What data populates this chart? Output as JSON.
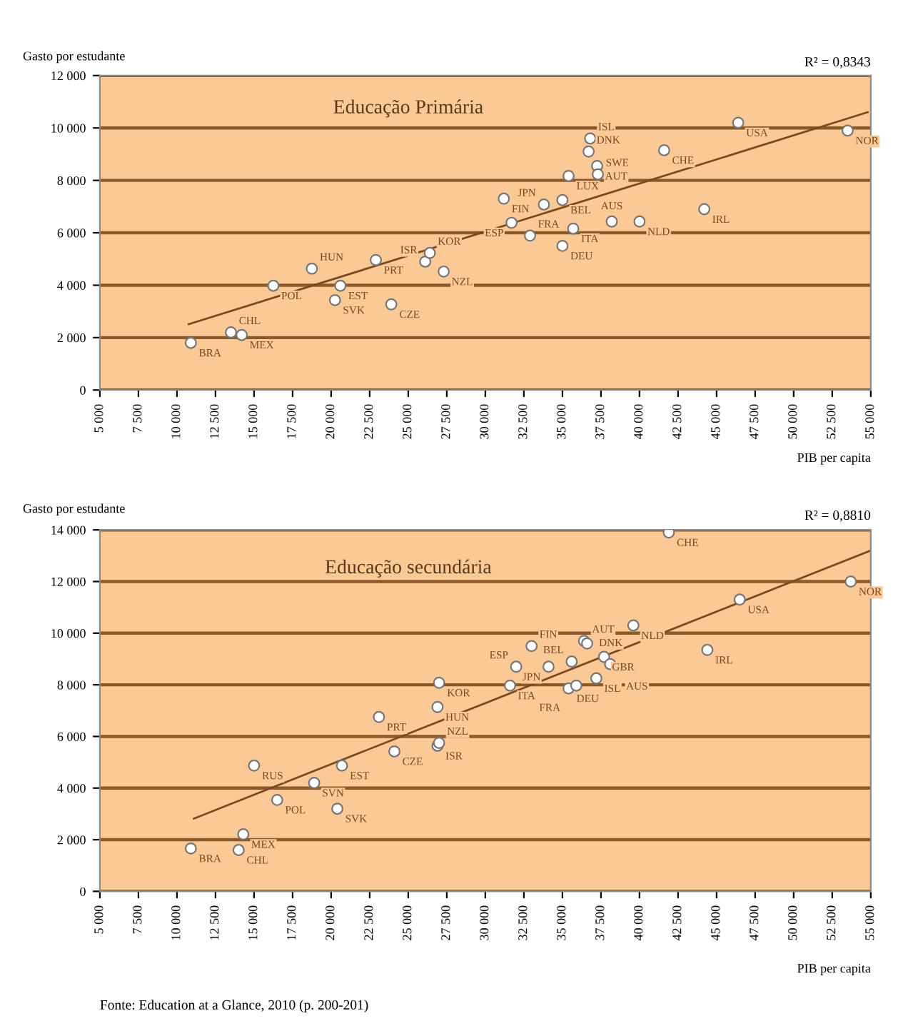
{
  "chart_data": [
    {
      "type": "scatter",
      "title": "Educação Primária",
      "xlabel": "PIB per capita",
      "ylabel": "Gasto por estudante",
      "annotations": [
        "R² = 0,8343"
      ],
      "grid": "y",
      "xlim": [
        5000,
        55000
      ],
      "ylim": [
        0,
        12000
      ],
      "xticks": [
        {
          "value": 5000,
          "label": "5 000"
        },
        {
          "value": 7500,
          "label": "7 500"
        },
        {
          "value": 10000,
          "label": "10 000"
        },
        {
          "value": 12500,
          "label": "12 500"
        },
        {
          "value": 15000,
          "label": "15 000"
        },
        {
          "value": 17500,
          "label": "17 500"
        },
        {
          "value": 20000,
          "label": "20 000"
        },
        {
          "value": 22500,
          "label": "22 500"
        },
        {
          "value": 25000,
          "label": "25 000"
        },
        {
          "value": 27500,
          "label": "27 500"
        },
        {
          "value": 30000,
          "label": "30 000"
        },
        {
          "value": 32500,
          "label": "32 500"
        },
        {
          "value": 35000,
          "label": "35 000"
        },
        {
          "value": 37500,
          "label": "37 500"
        },
        {
          "value": 40000,
          "label": "40 000"
        },
        {
          "value": 42500,
          "label": "42 500"
        },
        {
          "value": 45000,
          "label": "45 000"
        },
        {
          "value": 47500,
          "label": "47 500"
        },
        {
          "value": 50000,
          "label": "50 000"
        },
        {
          "value": 52500,
          "label": "52 500"
        },
        {
          "value": 55000,
          "label": "55 000"
        }
      ],
      "yticks": [
        0,
        {
          "value": 2000,
          "label": "2 000"
        },
        {
          "value": 4000,
          "label": "4 000"
        },
        {
          "value": 6000,
          "label": "6 000"
        },
        {
          "value": 8000,
          "label": "8 000"
        },
        {
          "value": 10000,
          "label": "10 000"
        },
        {
          "value": 12000,
          "label": "12 000"
        }
      ],
      "series": [
        {
          "color": "#ffffff",
          "marker": "circle",
          "x": [
            10900,
            13500,
            14200,
            16250,
            18750,
            20250,
            20600,
            23900,
            22900,
            26100,
            26400,
            27300,
            31200,
            31700,
            32900,
            33800,
            35000,
            35000,
            35400,
            35700,
            36700,
            36800,
            37250,
            37300,
            38200,
            40000,
            41600,
            44200,
            46400,
            53500
          ],
          "values": [
            1800,
            2200,
            2100,
            3980,
            4630,
            3430,
            3980,
            3270,
            4960,
            4900,
            5230,
            4520,
            7300,
            6380,
            5890,
            7080,
            7250,
            5500,
            8170,
            6160,
            9100,
            9600,
            8550,
            8230,
            6430,
            6430,
            9150,
            6900,
            10200,
            9900
          ],
          "value_labels": [
            "BRA",
            "CHL",
            "MEX",
            "POL",
            "HUN",
            "SVK",
            "EST",
            "CZE",
            "PRT",
            "ISR",
            "KOR",
            "NZL",
            "FIN",
            "ESP",
            "FRA",
            "JPN",
            "BEL",
            "DEU",
            "LUX",
            "ITA",
            "DNK",
            "ISL",
            "AUT",
            "SWE",
            "AUS",
            "NLD",
            "CHE",
            "IRL",
            "USA",
            "NOR"
          ]
        },
        {
          "type": "line",
          "color": "#7a4a1e",
          "line_style": "solid",
          "x": [
            10760,
            54800
          ],
          "values": [
            2510,
            10600
          ]
        }
      ]
    },
    {
      "type": "scatter",
      "title": "Educação secundária",
      "xlabel": "PIB per capita",
      "ylabel": "Gasto por estudante",
      "annotations": [
        "R² = 0,8810",
        "Fonte: Education at a Glance, 2010 (p. 200-201)"
      ],
      "grid": "y",
      "xlim": [
        5000,
        55000
      ],
      "ylim": [
        0,
        14000
      ],
      "xticks": [
        {
          "value": 5000,
          "label": "5 000"
        },
        {
          "value": 7500,
          "label": "7 500"
        },
        {
          "value": 10000,
          "label": "10 000"
        },
        {
          "value": 12500,
          "label": "12 500"
        },
        {
          "value": 15000,
          "label": "15 000"
        },
        {
          "value": 17500,
          "label": "17 500"
        },
        {
          "value": 20000,
          "label": "20 000"
        },
        {
          "value": 22500,
          "label": "22 500"
        },
        {
          "value": 25000,
          "label": "25 000"
        },
        {
          "value": 27500,
          "label": "27 500"
        },
        {
          "value": 30000,
          "label": "30 000"
        },
        {
          "value": 32500,
          "label": "32 500"
        },
        {
          "value": 35000,
          "label": "35 000"
        },
        {
          "value": 37500,
          "label": "37 500"
        },
        {
          "value": 40000,
          "label": "40 000"
        },
        {
          "value": 42500,
          "label": "42 500"
        },
        {
          "value": 45000,
          "label": "45 000"
        },
        {
          "value": 47500,
          "label": "47 500"
        },
        {
          "value": 50000,
          "label": "50 000"
        },
        {
          "value": 52500,
          "label": "52 500"
        },
        {
          "value": 55000,
          "label": "55 000"
        }
      ],
      "yticks": [
        0,
        {
          "value": 2000,
          "label": "2 000"
        },
        {
          "value": 4000,
          "label": "4 000"
        },
        {
          "value": 6000,
          "label": "6 000"
        },
        {
          "value": 8000,
          "label": "8 000"
        },
        {
          "value": 10000,
          "label": "10 000"
        },
        {
          "value": 12000,
          "label": "12 000"
        },
        {
          "value": 14000,
          "label": "14 000"
        }
      ],
      "series": [
        {
          "color": "#ffffff",
          "marker": "circle",
          "x": [
            10900,
            14000,
            14300,
            16500,
            15000,
            18900,
            20400,
            20700,
            23100,
            24100,
            26900,
            27000,
            26900,
            27000,
            31600,
            32000,
            33000,
            34100,
            35400,
            35600,
            35900,
            36400,
            36600,
            37200,
            37700,
            38100,
            39600,
            41900,
            44400,
            46500,
            53700
          ],
          "values": [
            1660,
            1600,
            2210,
            3540,
            4870,
            4200,
            3200,
            4870,
            6750,
            5420,
            5640,
            5750,
            7140,
            8080,
            7970,
            8700,
            9500,
            8700,
            7860,
            8900,
            7970,
            9700,
            9600,
            8250,
            9080,
            8800,
            10300,
            13900,
            9350,
            11300,
            12000
          ],
          "value_labels": [
            "BRA",
            "CHL",
            "MEX",
            "POL",
            "RUS",
            "SVN",
            "SVK",
            "EST",
            "PRT",
            "CZE",
            "ISR",
            "NZL",
            "HUN",
            "KOR",
            "ITA",
            "ESP",
            "FIN",
            "JPN",
            "DEU",
            "BEL",
            "FRA",
            "AUT",
            "DNK",
            "ISL",
            "GBR",
            "AUS",
            "NLD",
            "CHE",
            "IRL",
            "USA",
            "NOR"
          ]
        },
        {
          "type": "line",
          "color": "#7a4a1e",
          "line_style": "solid",
          "x": [
            11100,
            55000
          ],
          "values": [
            2820,
            13200
          ]
        }
      ]
    }
  ]
}
